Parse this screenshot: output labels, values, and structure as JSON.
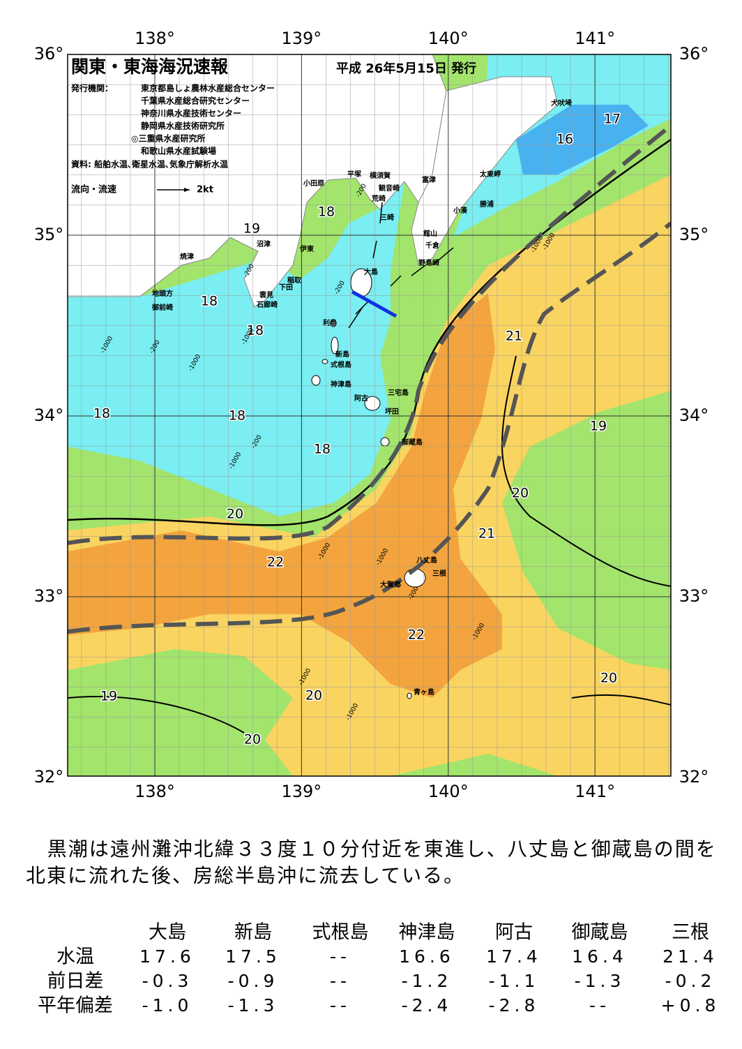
{
  "header": {
    "title": "関東・東海海況速報",
    "date": "平成 26年5月15日 発行",
    "issuer_label": "発行機関：",
    "issuers": [
      "東京都島しょ農林水産総合センター",
      "千葉県水産総合研究センター",
      "神奈川県水産技術センター",
      "静岡県水産技術研究所",
      "◎三重県水産研究所",
      "和歌山県水産試験場"
    ],
    "source": "資料: 船舶水温､衛星水温､気象庁解析水温",
    "legend_label": "流向・流速",
    "legend_scale": "2kt"
  },
  "map": {
    "lon_labels": [
      "138°",
      "139°",
      "140°",
      "141°"
    ],
    "lat_labels": [
      "36°",
      "35°",
      "34°",
      "33°",
      "32°"
    ],
    "places": [
      "犬吠埼",
      "太東岬",
      "勝浦",
      "小湊",
      "富津",
      "館山",
      "千倉",
      "野島崎",
      "横須賀",
      "観音崎",
      "荒崎",
      "平塚",
      "三崎",
      "小田原",
      "大島",
      "伊東",
      "沼津",
      "焼津",
      "稲取",
      "下田",
      "雲見",
      "石廊崎",
      "地頭方",
      "御前崎",
      "利島",
      "新島",
      "式根島",
      "神津島",
      "三宅島",
      "阿古",
      "坪田",
      "御蔵島",
      "八丈島",
      "三根",
      "大賀郷",
      "青ヶ島"
    ],
    "temperature_labels": [
      "17",
      "16",
      "18",
      "19",
      "18",
      "18",
      "21",
      "18",
      "18",
      "19",
      "18",
      "20",
      "20",
      "21",
      "22",
      "22",
      "20",
      "19",
      "20",
      "20"
    ],
    "depth_labels": [
      "-200",
      "-1000",
      "-200",
      "-200",
      "-1000",
      "-200",
      "-1000",
      "-1000",
      "-200",
      "-1000",
      "-1000",
      "-1000",
      "-200",
      "-1000",
      "-1000",
      "-1000",
      "-1000"
    ]
  },
  "summary": "黒潮は遠州灘沖北緯３３度１０分付近を東進し、八丈島と御蔵島の間を北東に流れた後、房総半島沖に流去している。",
  "table": {
    "columns": [
      "大島",
      "新島",
      "式根島",
      "神津島",
      "阿古",
      "御蔵島",
      "三根"
    ],
    "rows": [
      {
        "label": "水温",
        "cells": [
          "17.6",
          "17.5",
          "--",
          "16.6",
          "17.4",
          "16.4",
          "21.4"
        ]
      },
      {
        "label": "前日差",
        "cells": [
          "-0.3",
          "-0.9",
          "--",
          "-1.2",
          "-1.1",
          "-1.3",
          "-0.2"
        ]
      },
      {
        "label": "平年偏差",
        "cells": [
          "-1.0",
          "-1.3",
          "--",
          "-2.4",
          "-2.8",
          "--",
          "+0.8"
        ]
      }
    ]
  }
}
